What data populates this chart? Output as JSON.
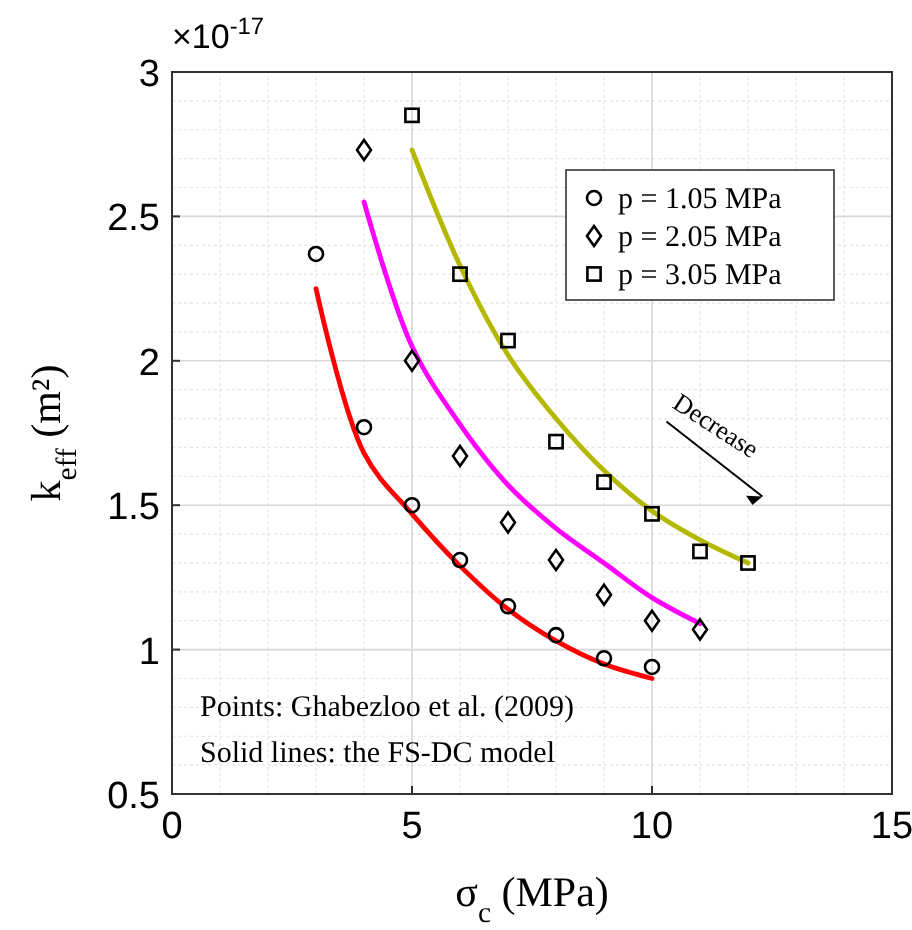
{
  "chart_data": {
    "type": "scatter",
    "xlabel": "σ$_{c}$ (MPa)",
    "ylabel": "k$_{eff}$ (m²)",
    "xlim": [
      0,
      15
    ],
    "xticks": [
      0,
      5,
      10,
      15
    ],
    "ylim": [
      0.5,
      3
    ],
    "yticks": [
      0.5,
      1,
      1.5,
      2,
      2.5,
      3
    ],
    "grid": true,
    "legend": "top right",
    "annotations": [
      "×10$^{-17}$",
      "Decrease",
      "Points: Ghabezloo et al. (2009)",
      "Solid lines: the FS-DC model"
    ],
    "series": [
      {
        "name": "p = 1.05 MPa",
        "marker": "circle",
        "color": "#000000",
        "x": [
          3,
          4,
          5,
          6,
          7,
          8,
          9,
          10
        ],
        "values": [
          2.37,
          1.77,
          1.5,
          1.31,
          1.15,
          1.05,
          0.97,
          0.94
        ]
      },
      {
        "name": "p = 2.05 MPa",
        "marker": "diamond",
        "color": "#000000",
        "x": [
          4,
          5,
          6,
          7,
          8,
          9,
          10,
          11
        ],
        "values": [
          2.73,
          2.0,
          1.67,
          1.44,
          1.31,
          1.19,
          1.1,
          1.07
        ]
      },
      {
        "name": "p = 3.05 MPa",
        "marker": "square",
        "color": "#000000",
        "x": [
          5,
          6,
          7,
          8,
          9,
          10,
          11,
          12
        ],
        "values": [
          2.85,
          2.3,
          2.07,
          1.72,
          1.58,
          1.47,
          1.34,
          1.3
        ]
      },
      {
        "type": "line",
        "color": "#ff0000",
        "x": [
          3,
          4,
          5,
          6,
          7,
          8,
          9,
          10
        ],
        "values": [
          2.25,
          1.68,
          1.47,
          1.29,
          1.14,
          1.03,
          0.95,
          0.9
        ]
      },
      {
        "type": "line",
        "color": "#ff00ff",
        "x": [
          4,
          5,
          6,
          7,
          8,
          9,
          10,
          11
        ],
        "values": [
          2.55,
          2.05,
          1.78,
          1.57,
          1.42,
          1.3,
          1.18,
          1.09
        ]
      },
      {
        "type": "line",
        "color": "#b5b800",
        "x": [
          5,
          6,
          7,
          8,
          9,
          10,
          11,
          12
        ],
        "values": [
          2.73,
          2.33,
          2.02,
          1.8,
          1.62,
          1.48,
          1.38,
          1.3
        ]
      }
    ]
  }
}
